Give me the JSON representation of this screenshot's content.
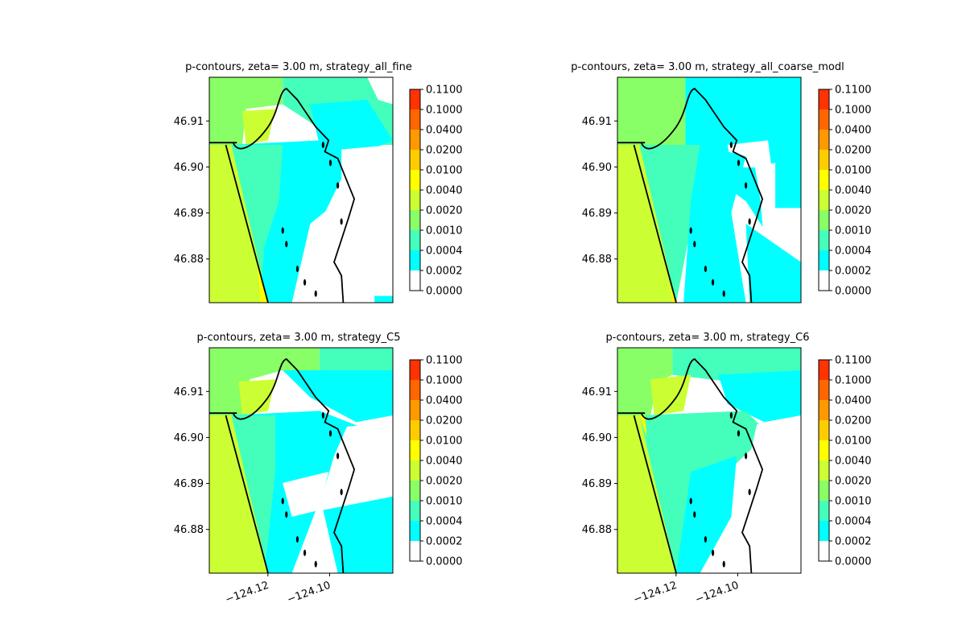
{
  "chart_data": [
    {
      "type": "heatmap",
      "title": "p-contours, zeta= 3.00 m, strategy_all_fine",
      "yticks": [
        "46.91",
        "46.90",
        "46.89",
        "46.88"
      ],
      "ytick_values": [
        46.91,
        46.9,
        46.89,
        46.88
      ],
      "xticks": [],
      "ylim": [
        46.8705,
        46.9195
      ],
      "xlim": [
        -124.139,
        -124.0795
      ],
      "colorbar": {
        "levels": [
          "0.0000",
          "0.0002",
          "0.0004",
          "0.0010",
          "0.0020",
          "0.0040",
          "0.0100",
          "0.0200",
          "0.0400",
          "0.1000",
          "0.1100"
        ],
        "colors": [
          "#ffffff",
          "#00ffff",
          "#44ffbb",
          "#88ff66",
          "#ccff33",
          "#ffff00",
          "#ffcc00",
          "#ff9900",
          "#ff6600",
          "#ff3300",
          "#ff0000"
        ]
      }
    },
    {
      "type": "heatmap",
      "title": "p-contours, zeta= 3.00 m, strategy_all_coarse_modl",
      "yticks": [
        "46.91",
        "46.90",
        "46.89",
        "46.88"
      ],
      "ytick_values": [
        46.91,
        46.9,
        46.89,
        46.88
      ],
      "xticks": [],
      "ylim": [
        46.8705,
        46.9195
      ],
      "xlim": [
        -124.139,
        -124.0795
      ],
      "colorbar": {
        "levels": [
          "0.0000",
          "0.0002",
          "0.0004",
          "0.0010",
          "0.0020",
          "0.0040",
          "0.0100",
          "0.0200",
          "0.0400",
          "0.1000",
          "0.1100"
        ],
        "colors": [
          "#ffffff",
          "#00ffff",
          "#44ffbb",
          "#88ff66",
          "#ccff33",
          "#ffff00",
          "#ffcc00",
          "#ff9900",
          "#ff6600",
          "#ff3300",
          "#ff0000"
        ]
      }
    },
    {
      "type": "heatmap",
      "title": "p-contours, zeta= 3.00 m, strategy_C5",
      "yticks": [
        "46.91",
        "46.90",
        "46.89",
        "46.88"
      ],
      "ytick_values": [
        46.91,
        46.9,
        46.89,
        46.88
      ],
      "xticks": [
        "−124.12",
        "−124.10"
      ],
      "xtick_values": [
        -124.12,
        -124.1
      ],
      "ylim": [
        46.8705,
        46.9195
      ],
      "xlim": [
        -124.139,
        -124.0795
      ],
      "colorbar": {
        "levels": [
          "0.0000",
          "0.0002",
          "0.0004",
          "0.0010",
          "0.0020",
          "0.0040",
          "0.0100",
          "0.0200",
          "0.0400",
          "0.1000",
          "0.1100"
        ],
        "colors": [
          "#ffffff",
          "#00ffff",
          "#44ffbb",
          "#88ff66",
          "#ccff33",
          "#ffff00",
          "#ffcc00",
          "#ff9900",
          "#ff6600",
          "#ff3300",
          "#ff0000"
        ]
      }
    },
    {
      "type": "heatmap",
      "title": "p-contours, zeta= 3.00 m, strategy_C6",
      "yticks": [
        "46.91",
        "46.90",
        "46.89",
        "46.88"
      ],
      "ytick_values": [
        46.91,
        46.9,
        46.89,
        46.88
      ],
      "xticks": [
        "−124.12",
        "−124.10"
      ],
      "xtick_values": [
        -124.12,
        -124.1
      ],
      "ylim": [
        46.8705,
        46.9195
      ],
      "xlim": [
        -124.139,
        -124.0795
      ],
      "colorbar": {
        "levels": [
          "0.0000",
          "0.0002",
          "0.0004",
          "0.0010",
          "0.0020",
          "0.0040",
          "0.0100",
          "0.0200",
          "0.0400",
          "0.1000",
          "0.1100"
        ],
        "colors": [
          "#ffffff",
          "#00ffff",
          "#44ffbb",
          "#88ff66",
          "#ccff33",
          "#ffff00",
          "#ffcc00",
          "#ff9900",
          "#ff6600",
          "#ff3300",
          "#ff0000"
        ]
      }
    }
  ]
}
